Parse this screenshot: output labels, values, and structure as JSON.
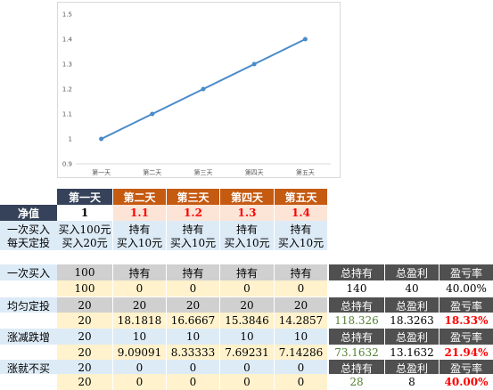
{
  "chart_data": {
    "type": "line",
    "categories": [
      "第一天",
      "第二天",
      "第三天",
      "第四天",
      "第五天"
    ],
    "series": [
      {
        "values": [
          1,
          1.1,
          1.2,
          1.3,
          1.4
        ],
        "color": "#4a8bc9"
      }
    ],
    "yticks": [
      "0.9",
      "1",
      "1.1",
      "1.2",
      "1.3",
      "1.4",
      "1.5"
    ],
    "ylim": [
      0.9,
      1.5
    ],
    "grid": false,
    "title": "",
    "xlabel": "",
    "ylabel": ""
  },
  "table1": {
    "header": [
      "第一天",
      "第二天",
      "第三天",
      "第四天",
      "第五天"
    ],
    "nav_label": "净值",
    "nav": [
      "1",
      "1.1",
      "1.2",
      "1.3",
      "1.4"
    ],
    "row2_label": "一次买入",
    "row2": [
      "买入100元",
      "持有",
      "持有",
      "持有",
      "持有"
    ],
    "row3_label": "每天定投",
    "row3": [
      "买入20元",
      "买入10元",
      "买入10元",
      "买入10元",
      "买入10元"
    ]
  },
  "table2": {
    "summary_header": [
      "总持有",
      "总盈利",
      "盈亏率"
    ],
    "groups": [
      {
        "label": "一次买入",
        "buy": [
          "100",
          "持有",
          "持有",
          "持有",
          "持有"
        ],
        "shares": [
          "100",
          "0",
          "0",
          "0",
          "0"
        ],
        "summary": [
          "140",
          "40",
          "40.00%"
        ]
      },
      {
        "label": "均匀定投",
        "buy": [
          "20",
          "20",
          "20",
          "20",
          "20"
        ],
        "shares": [
          "20",
          "18.1818",
          "16.6667",
          "15.3846",
          "14.2857"
        ],
        "summary": [
          "118.326",
          "18.3263",
          "18.33%"
        ]
      },
      {
        "label": "涨减跌增",
        "buy": [
          "20",
          "10",
          "10",
          "10",
          "10"
        ],
        "shares": [
          "20",
          "9.09091",
          "8.33333",
          "7.69231",
          "7.14286"
        ],
        "summary": [
          "73.1632",
          "13.1632",
          "21.94%"
        ]
      },
      {
        "label": "涨就不买",
        "buy": [
          "20",
          "0",
          "0",
          "0",
          "0"
        ],
        "shares": [
          "20",
          "0",
          "0",
          "0",
          "0"
        ],
        "summary": [
          "28",
          "8",
          "40.00%"
        ]
      }
    ]
  }
}
